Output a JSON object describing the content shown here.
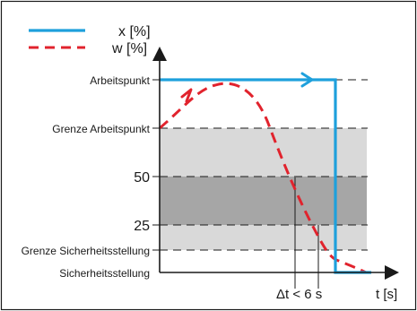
{
  "legend": {
    "x_label": "x [%]",
    "w_label": "w [%]"
  },
  "y_labels": {
    "arbeitspunkt": "Arbeitspunkt",
    "grenze_arbeitspunkt": "Grenze Arbeitspunkt",
    "fifty": "50",
    "twenty_five": "25",
    "grenze_sicherheitsstellung": "Grenze Sicherheitsstellung",
    "sicherheitsstellung": "Sicherheitsstellung"
  },
  "annotation": {
    "delta_t": "Δt < 6 s"
  },
  "x_axis_label": "t [s]",
  "colors": {
    "x_series": "#1ea0dc",
    "w_series": "#e1232d",
    "band_light": "#d9d9d9",
    "band_dark": "#a6a6a6",
    "axis": "#1a1a1a"
  }
}
